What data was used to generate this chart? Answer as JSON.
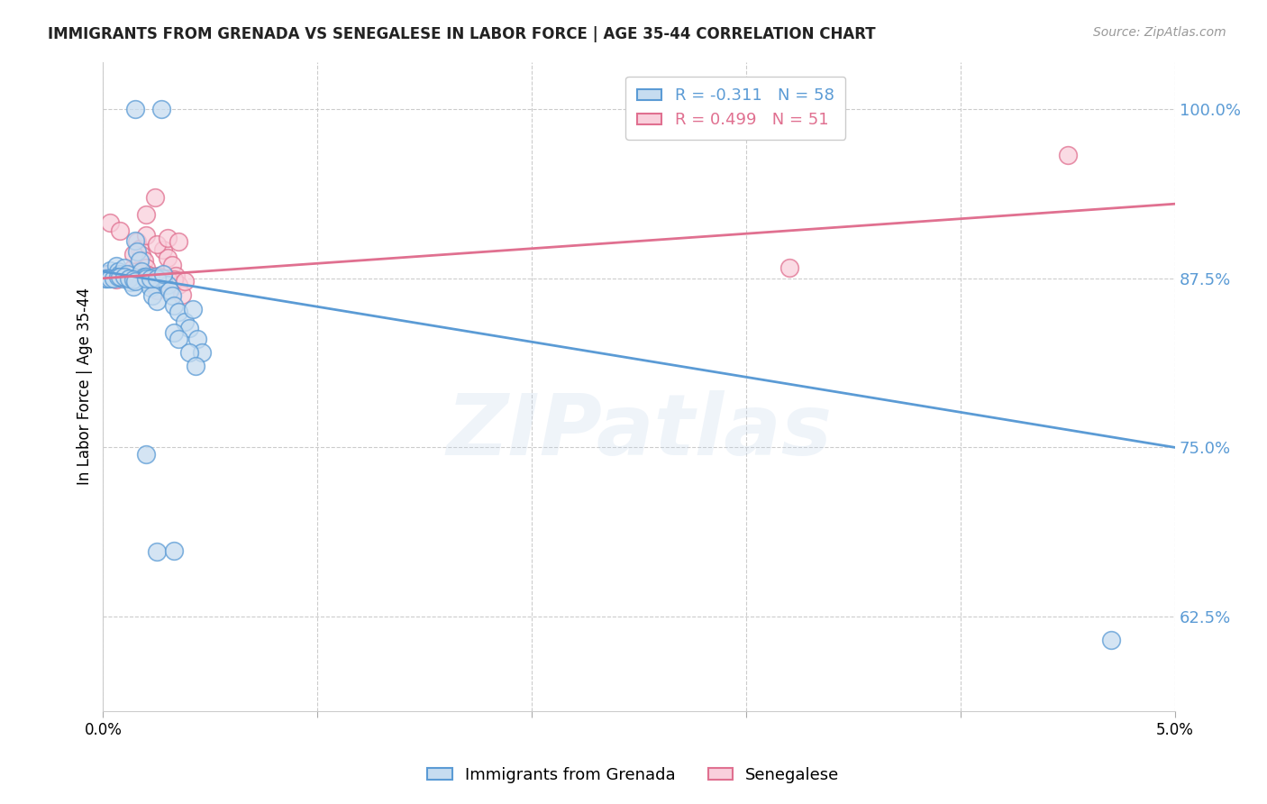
{
  "title": "IMMIGRANTS FROM GRENADA VS SENEGALESE IN LABOR FORCE | AGE 35-44 CORRELATION CHART",
  "source": "Source: ZipAtlas.com",
  "ylabel": "In Labor Force | Age 35-44",
  "xlim": [
    0.0,
    0.05
  ],
  "ylim": [
    0.555,
    1.035
  ],
  "yticks": [
    0.625,
    0.75,
    0.875,
    1.0
  ],
  "ytick_labels": [
    "62.5%",
    "75.0%",
    "87.5%",
    "100.0%"
  ],
  "xticks": [
    0.0,
    0.01,
    0.02,
    0.03,
    0.04,
    0.05
  ],
  "xtick_labels": [
    "0.0%",
    "",
    "",
    "",
    "",
    "5.0%"
  ],
  "blue_face_color": "#c6dcf0",
  "blue_edge_color": "#5b9bd5",
  "pink_face_color": "#f9d0dc",
  "pink_edge_color": "#e07090",
  "blue_line_color": "#5b9bd5",
  "pink_line_color": "#e07090",
  "legend_blue_R": "-0.311",
  "legend_blue_N": "58",
  "legend_pink_R": "0.499",
  "legend_pink_N": "51",
  "watermark": "ZIPatlas",
  "blue_scatter_x": [
    0.0002,
    0.0003,
    0.0005,
    0.0006,
    0.0007,
    0.0008,
    0.0009,
    0.001,
    0.0011,
    0.0012,
    0.0013,
    0.0014,
    0.0015,
    0.0016,
    0.0017,
    0.0018,
    0.0019,
    0.002,
    0.0021,
    0.0022,
    0.0023,
    0.0024,
    0.0025,
    0.0028,
    0.003,
    0.0031,
    0.0032,
    0.0033,
    0.0035,
    0.0038,
    0.004,
    0.0042,
    0.0044,
    0.0046,
    0.0001,
    0.0002,
    0.0003,
    0.0005,
    0.0007,
    0.0008,
    0.001,
    0.0012,
    0.0014,
    0.0015,
    0.002,
    0.0022,
    0.0025,
    0.0028,
    0.0033,
    0.0035,
    0.004,
    0.0043,
    0.0015,
    0.0027,
    0.002,
    0.0025,
    0.0033,
    0.047
  ],
  "blue_scatter_y": [
    0.878,
    0.881,
    0.876,
    0.884,
    0.88,
    0.878,
    0.875,
    0.883,
    0.878,
    0.875,
    0.872,
    0.869,
    0.903,
    0.895,
    0.888,
    0.88,
    0.876,
    0.876,
    0.872,
    0.868,
    0.862,
    0.876,
    0.858,
    0.875,
    0.87,
    0.866,
    0.862,
    0.855,
    0.85,
    0.843,
    0.838,
    0.852,
    0.83,
    0.82,
    0.875,
    0.875,
    0.875,
    0.875,
    0.876,
    0.876,
    0.876,
    0.875,
    0.874,
    0.873,
    0.875,
    0.875,
    0.875,
    0.878,
    0.835,
    0.83,
    0.82,
    0.81,
    1.0,
    1.0,
    0.745,
    0.673,
    0.674,
    0.608
  ],
  "pink_scatter_x": [
    0.0002,
    0.0004,
    0.0006,
    0.0008,
    0.0009,
    0.001,
    0.0012,
    0.0014,
    0.0015,
    0.0016,
    0.0017,
    0.0018,
    0.0019,
    0.002,
    0.0022,
    0.0024,
    0.0025,
    0.0026,
    0.0028,
    0.003,
    0.0032,
    0.0034,
    0.0035,
    0.0037,
    0.0001,
    0.0003,
    0.0005,
    0.0007,
    0.0009,
    0.0011,
    0.0013,
    0.0015,
    0.0018,
    0.002,
    0.0022,
    0.0025,
    0.0028,
    0.003,
    0.0033,
    0.0038,
    0.002,
    0.0025,
    0.003,
    0.0035,
    0.0003,
    0.0008,
    0.0014,
    0.002,
    0.0024,
    0.045,
    0.032
  ],
  "pink_scatter_y": [
    0.878,
    0.876,
    0.874,
    0.878,
    0.876,
    0.877,
    0.875,
    0.883,
    0.88,
    0.902,
    0.897,
    0.892,
    0.888,
    0.883,
    0.876,
    0.87,
    0.866,
    0.877,
    0.896,
    0.89,
    0.885,
    0.877,
    0.87,
    0.863,
    0.876,
    0.876,
    0.876,
    0.876,
    0.877,
    0.877,
    0.877,
    0.878,
    0.878,
    0.878,
    0.877,
    0.876,
    0.875,
    0.875,
    0.874,
    0.873,
    0.907,
    0.9,
    0.905,
    0.902,
    0.916,
    0.91,
    0.893,
    0.922,
    0.935,
    0.966,
    0.883
  ],
  "blue_line_x": [
    0.0,
    0.05
  ],
  "blue_line_y": [
    0.88,
    0.75
  ],
  "pink_line_x": [
    0.0,
    0.05
  ],
  "pink_line_y": [
    0.875,
    0.93
  ]
}
